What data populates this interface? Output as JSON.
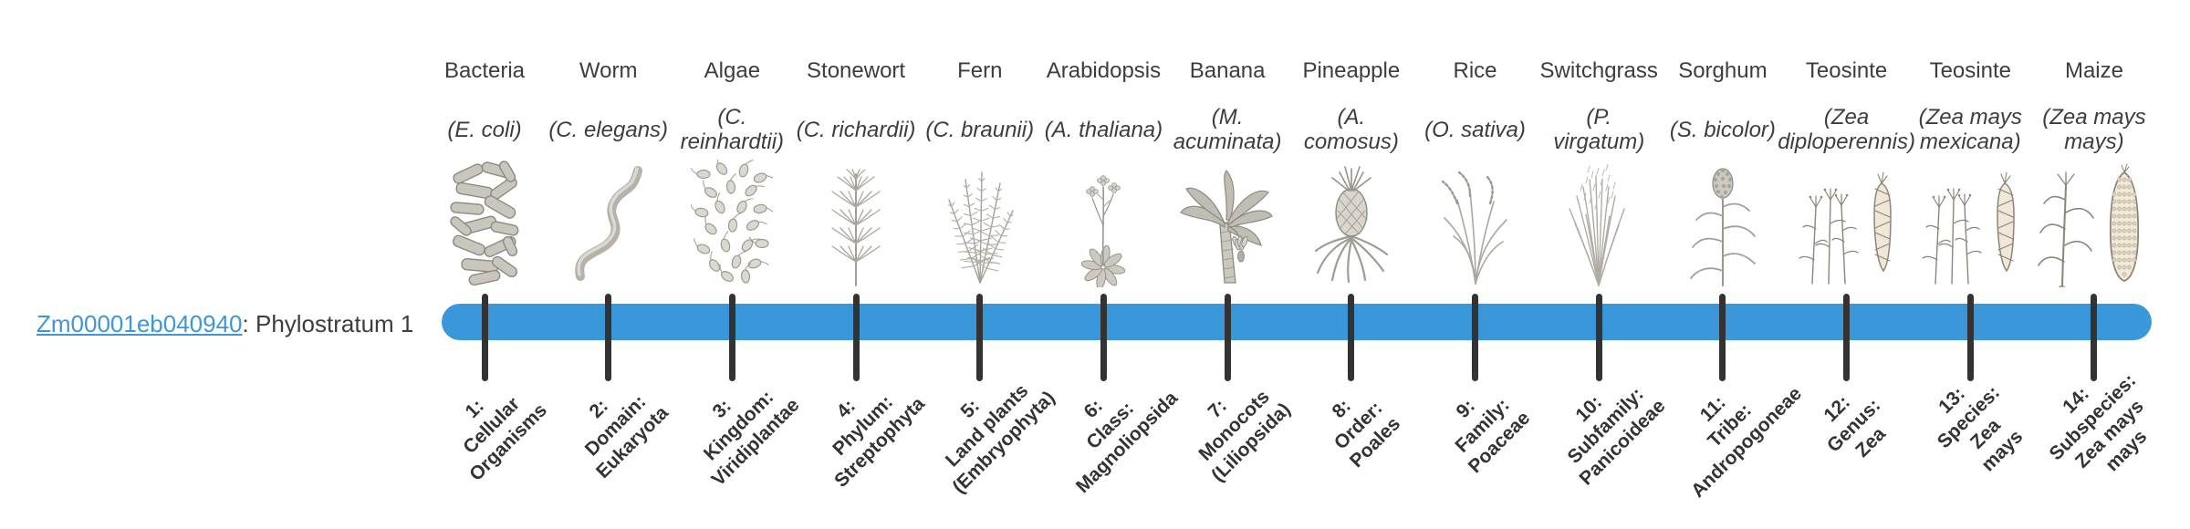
{
  "gene": {
    "id": "Zm00001eb040940",
    "suffix": ": Phylostratum 1"
  },
  "timeline": {
    "tick_count": 14
  },
  "colors": {
    "bar": "#3A97DA",
    "tick": "#333333",
    "link": "#3E96D6",
    "text": "#3D3D3C"
  },
  "species": [
    {
      "name": "Bacteria",
      "latin": "(E. coli)",
      "icon": "bacteria-icon"
    },
    {
      "name": "Worm",
      "latin": "(C. elegans)",
      "icon": "worm-icon"
    },
    {
      "name": "Algae",
      "latin": "(C.\nreinhardtii)",
      "icon": "algae-icon"
    },
    {
      "name": "Stonewort",
      "latin": "(C. richardii)",
      "icon": "stonewort-icon"
    },
    {
      "name": "Fern",
      "latin": "(C. braunii)",
      "icon": "fern-icon"
    },
    {
      "name": "Arabidopsis",
      "latin": "(A. thaliana)",
      "icon": "arabidopsis-icon"
    },
    {
      "name": "Banana",
      "latin": "(M.\nacuminata)",
      "icon": "banana-icon"
    },
    {
      "name": "Pineapple",
      "latin": "(A.\ncomosus)",
      "icon": "pineapple-icon"
    },
    {
      "name": "Rice",
      "latin": "(O. sativa)",
      "icon": "rice-icon"
    },
    {
      "name": "Switchgrass",
      "latin": "(P.\nvirgatum)",
      "icon": "switchgrass-icon"
    },
    {
      "name": "Sorghum",
      "latin": "(S. bicolor)",
      "icon": "sorghum-icon"
    },
    {
      "name": "Teosinte",
      "latin": "(Zea\ndiploperennis)",
      "icon": "teosinte-icon"
    },
    {
      "name": "Teosinte",
      "latin": "(Zea mays\nmexicana)",
      "icon": "teosinte-icon"
    },
    {
      "name": "Maize",
      "latin": "(Zea mays\nmays)",
      "icon": "maize-icon"
    }
  ],
  "phylostrata": [
    "1:\nCellular\nOrganisms",
    "2:\nDomain:\nEukaryota",
    "3:\nKingdom:\nViridiplantae",
    "4:\nPhylum:\nStreptophyta",
    "5:\nLand plants\n(Embryophyta)",
    "6:\nClass:\nMagnoliopsida",
    "7:\nMonocots\n(Liliopsida)",
    "8:\nOrder:\nPoales",
    "9:\nFamily:\nPoaceae",
    "10:\nSubfamily:\nPanicoideae",
    "11:\nTribe:\nAndropogoneae",
    "12:\nGenus:\nZea",
    "13:\nSpecies:\nZea\nmays",
    "14:\nSubspecies:\nZea mays\nmays"
  ]
}
